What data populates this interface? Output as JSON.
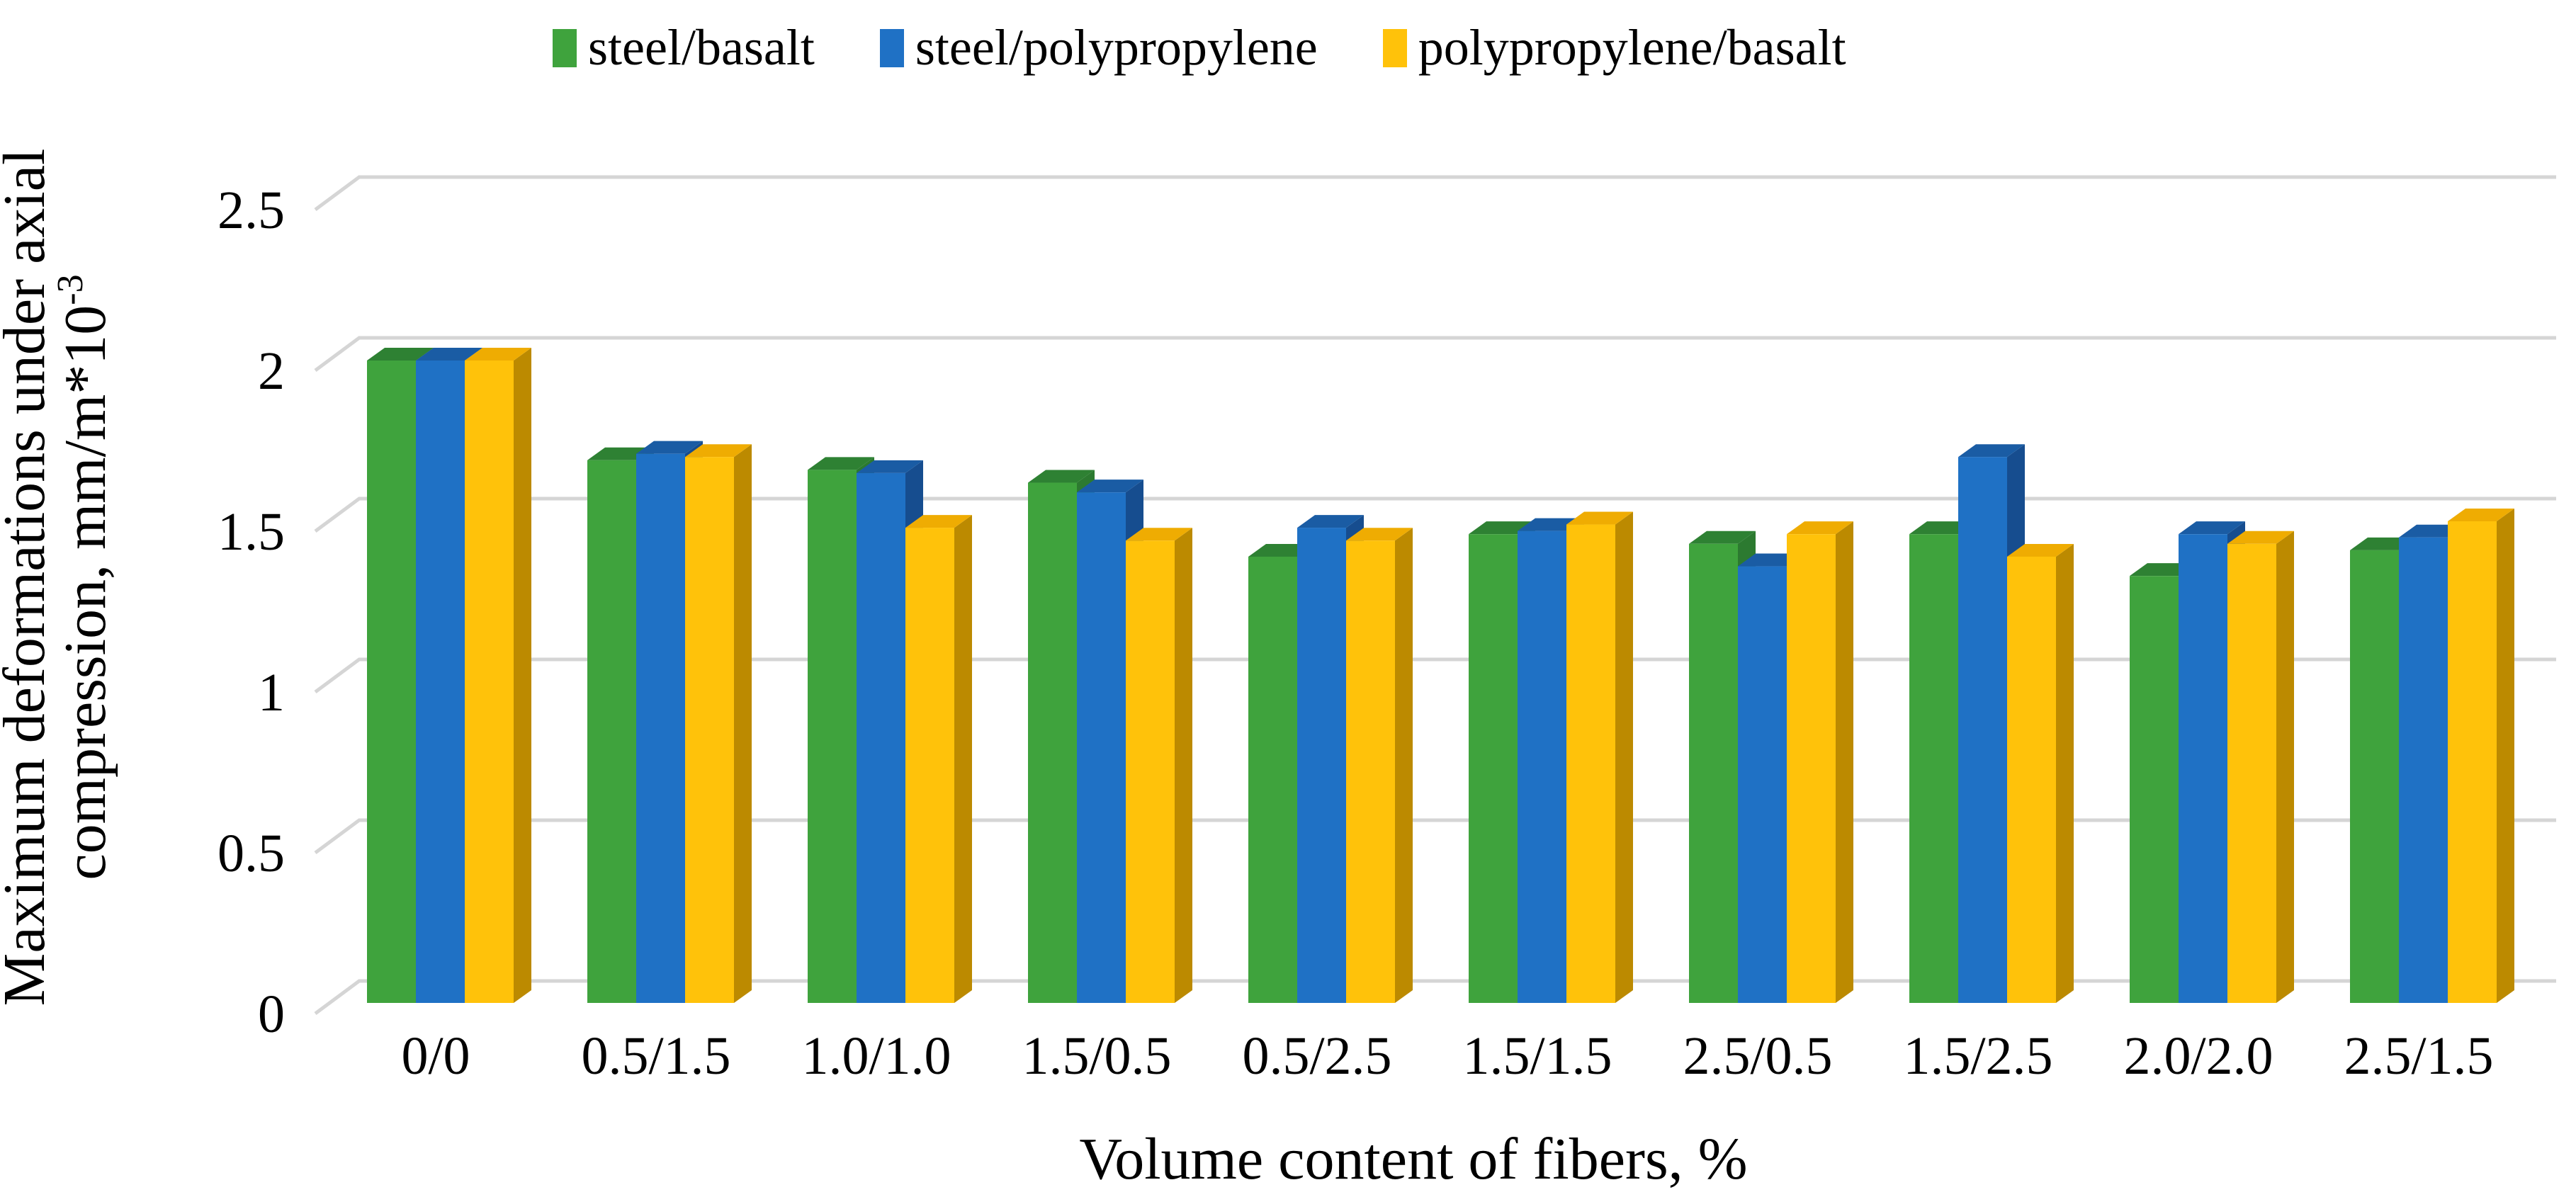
{
  "chart_data": {
    "type": "bar",
    "style": "3d-column",
    "title": "",
    "xlabel": "Volume content of fibers, %",
    "ylabel_line1": "Maximum deformations under axial",
    "ylabel_line2_base": "compression, mm/m*10",
    "ylabel_superscript": "-3",
    "ylim": [
      0,
      2.5
    ],
    "yticks": [
      "0",
      "0.5",
      "1",
      "1.5",
      "2",
      "2.5"
    ],
    "ytick_values": [
      0,
      0.5,
      1,
      1.5,
      2,
      2.5
    ],
    "grid_on": true,
    "grid_color": "#D5D5D5",
    "legend_position": "top",
    "categories": [
      "0/0",
      "0.5/1.5",
      "1.0/1.0",
      "1.5/0.5",
      "0.5/2.5",
      "1.5/1.5",
      "2.5/0.5",
      "1.5/2.5",
      "2.0/2.0",
      "2.5/1.5"
    ],
    "series": [
      {
        "name": "steel/basalt",
        "color": "#3FA33D",
        "color_top": "#2E8133",
        "color_side": "#2C7A30",
        "values": [
          2.0,
          1.69,
          1.66,
          1.62,
          1.39,
          1.46,
          1.43,
          1.46,
          1.33,
          1.41
        ]
      },
      {
        "name": "steel/polypropylene",
        "color": "#1F71C5",
        "color_top": "#1A5CA4",
        "color_side": "#164D8F",
        "values": [
          2.0,
          1.71,
          1.65,
          1.59,
          1.48,
          1.47,
          1.36,
          1.7,
          1.46,
          1.45
        ]
      },
      {
        "name": "polypropylene/basalt",
        "color": "#FFC20A",
        "color_top": "#EFAC02",
        "color_side": "#BC8A00",
        "values": [
          2.0,
          1.7,
          1.48,
          1.44,
          1.44,
          1.49,
          1.46,
          1.39,
          1.43,
          1.5
        ]
      }
    ]
  }
}
